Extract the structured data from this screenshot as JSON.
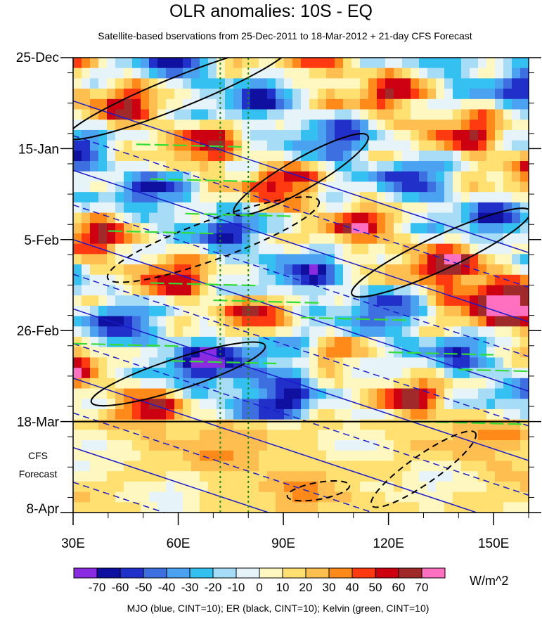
{
  "title": "OLR anomalies: 10S - EQ",
  "subtitle": "Satellite-based bservations from 25-Dec-2011 to 18-Mar-2012 + 21-day CFS Forecast",
  "footer": "MJO (blue, CINT=10); ER (black, CINT=10); Kelvin (green, CINT=10)",
  "forecast_label": [
    "CFS",
    "Forecast"
  ],
  "unit_label": "W/m^2",
  "chart_data": {
    "type": "heatmap",
    "title": "OLR anomalies: 10S - EQ",
    "subtitle": "Satellite-based bservations from 25-Dec-2011 to 18-Mar-2012 + 21-day CFS Forecast",
    "x_ticks": [
      {
        "lon": 30,
        "label": "30E"
      },
      {
        "lon": 60,
        "label": "60E"
      },
      {
        "lon": 90,
        "label": "90E"
      },
      {
        "lon": 120,
        "label": "120E"
      },
      {
        "lon": 150,
        "label": "150E"
      }
    ],
    "xlim": [
      30,
      160
    ],
    "y_ticks": [
      {
        "day": 0,
        "label": "25-Dec"
      },
      {
        "day": 21,
        "label": "15-Jan"
      },
      {
        "day": 42,
        "label": "5-Feb"
      },
      {
        "day": 63,
        "label": "26-Feb"
      },
      {
        "day": 84,
        "label": "18-Mar"
      },
      {
        "day": 105,
        "label": "8-Apr"
      }
    ],
    "ylim_days": [
      0,
      105
    ],
    "observation_end_day": 84,
    "vertical_reference_lons": [
      72,
      80
    ],
    "colorbar": {
      "labels": [
        "-70",
        "-60",
        "-50",
        "-40",
        "-30",
        "-20",
        "-10",
        "0",
        "10",
        "20",
        "30",
        "40",
        "50",
        "60",
        "70"
      ],
      "colors": [
        "#8a2be2",
        "#1010a0",
        "#2030c8",
        "#3d6fe0",
        "#4aa2f0",
        "#34c0f0",
        "#a6dcf6",
        "#e6f4fa",
        "#fff7c0",
        "#ffe070",
        "#ffbf50",
        "#ff8a1a",
        "#ff3a10",
        "#cc0010",
        "#a02a2a",
        "#ff70c0"
      ]
    },
    "contours": {
      "mjo_color": "#1a1acc",
      "er_color": "#000000",
      "kelvin_color": "#33dd33"
    }
  }
}
